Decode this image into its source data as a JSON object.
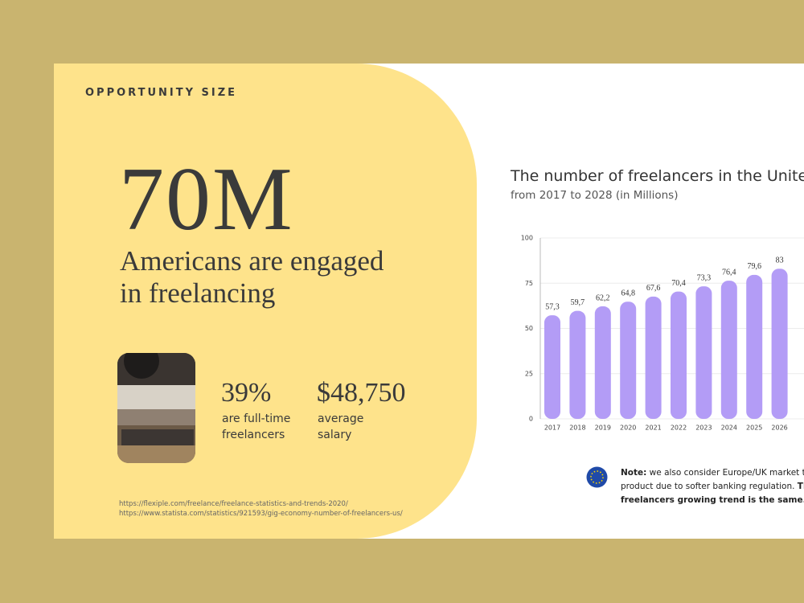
{
  "label": "OPPORTUNITY SIZE",
  "headline": {
    "number": "70M",
    "text_lines": [
      "Americans are engaged",
      "in freelancing"
    ]
  },
  "stats": [
    {
      "value": "39%",
      "caption_lines": [
        "are full-time",
        "freelancers"
      ]
    },
    {
      "value": "$48,750",
      "caption_lines": [
        "average",
        "salary"
      ]
    }
  ],
  "sources": [
    "https://flexiple.com/freelance/freelance-statistics-and-trends-2020/",
    "https://www.statista.com/statistics/921593/gig-economy-number-of-freelancers-us/"
  ],
  "chart_data": {
    "type": "bar",
    "title": "The number of freelancers in the United",
    "subtitle": "from 2017 to 2028 (in Millions)",
    "categories": [
      "2017",
      "2018",
      "2019",
      "2020",
      "2021",
      "2022",
      "2023",
      "2024",
      "2025",
      "2026"
    ],
    "values": [
      57.3,
      59.7,
      62.2,
      64.8,
      67.6,
      70.4,
      73.3,
      76.4,
      79.6,
      83
    ],
    "value_labels": [
      "57,3",
      "59,7",
      "62,2",
      "64,8",
      "67,6",
      "70,4",
      "73,3",
      "76,4",
      "79,6",
      "83"
    ],
    "color": "#b39cf6",
    "ylim": [
      0,
      100
    ],
    "yticks": [
      0,
      25,
      50,
      75,
      100
    ],
    "grid": true
  },
  "note": {
    "lead": "Note:",
    "line_1": " we also consider Europe/UK market to la",
    "line_2": "product due to softer banking regulation. ",
    "line_2_bold": "The",
    "line_3": "freelancers growing trend is the same."
  }
}
